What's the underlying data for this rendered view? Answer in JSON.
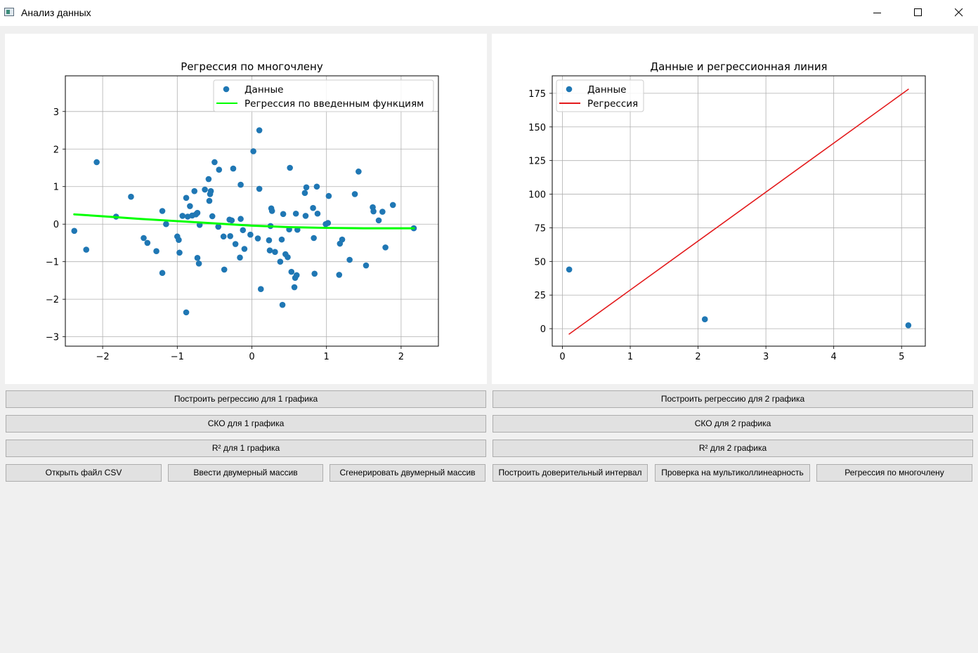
{
  "window": {
    "title": "Анализ данных",
    "icon": "app-window-icon",
    "controls": [
      "minimize-icon",
      "maximize-icon",
      "close-icon"
    ]
  },
  "chart_data": [
    {
      "type": "scatter",
      "title": "Регрессия по многочлену",
      "xlabel": "",
      "ylabel": "",
      "xlim": [
        -2.5,
        2.5
      ],
      "ylim": [
        -3.25,
        3.95
      ],
      "xticks": [
        -2,
        -1,
        0,
        1,
        2
      ],
      "xtick_labels": [
        "−2",
        "−1",
        "0",
        "1",
        "2"
      ],
      "yticks": [
        -3,
        -2,
        -1,
        0,
        1,
        2,
        3
      ],
      "ytick_labels": [
        "−3",
        "−2",
        "−1",
        "0",
        "1",
        "2",
        "3"
      ],
      "grid": true,
      "legend_position": "top-right",
      "legend": [
        "Данные",
        "Регрессия по введенным функциям"
      ],
      "series": [
        {
          "name": "Данные",
          "kind": "points",
          "color": "#1f77b4",
          "x": [
            -2.38,
            -2.22,
            -2.08,
            -1.82,
            -1.62,
            -1.45,
            -1.4,
            -1.28,
            -1.2,
            -1.2,
            -1.15,
            -1.0,
            -0.98,
            -0.97,
            -0.93,
            -0.88,
            -0.88,
            -0.86,
            -0.83,
            -0.8,
            -0.77,
            -0.75,
            -0.73,
            -0.73,
            -0.71,
            -0.7,
            -0.63,
            -0.58,
            -0.57,
            -0.56,
            -0.55,
            -0.53,
            -0.5,
            -0.45,
            -0.44,
            -0.38,
            -0.37,
            -0.3,
            -0.29,
            -0.27,
            -0.25,
            -0.22,
            -0.16,
            -0.15,
            -0.15,
            -0.12,
            -0.1,
            -0.02,
            0.02,
            0.08,
            0.1,
            0.1,
            0.12,
            0.23,
            0.24,
            0.25,
            0.26,
            0.27,
            0.31,
            0.38,
            0.4,
            0.41,
            0.42,
            0.45,
            0.48,
            0.5,
            0.51,
            0.53,
            0.57,
            0.58,
            0.59,
            0.6,
            0.61,
            0.71,
            0.72,
            0.73,
            0.82,
            0.83,
            0.84,
            0.87,
            0.88,
            0.99,
            1.02,
            1.03,
            1.17,
            1.18,
            1.21,
            1.31,
            1.38,
            1.43,
            1.53,
            1.62,
            1.63,
            1.7,
            1.75,
            1.79,
            1.89,
            2.17
          ],
          "y": [
            -0.18,
            -0.68,
            1.65,
            0.2,
            0.73,
            -0.37,
            -0.5,
            -0.72,
            0.35,
            -1.3,
            0.0,
            -0.33,
            -0.42,
            -0.76,
            0.22,
            0.7,
            -2.35,
            0.2,
            0.48,
            0.23,
            0.88,
            0.26,
            0.3,
            -0.9,
            -1.05,
            -0.02,
            0.92,
            1.2,
            0.62,
            0.8,
            0.88,
            0.21,
            1.65,
            -0.07,
            1.45,
            -0.33,
            -1.21,
            0.12,
            -0.32,
            0.1,
            1.48,
            -0.53,
            -0.89,
            1.05,
            0.14,
            -0.16,
            -0.66,
            -0.28,
            1.94,
            -0.38,
            2.5,
            0.94,
            -1.73,
            -0.43,
            -0.7,
            -0.05,
            0.42,
            0.35,
            -0.74,
            -1.0,
            -0.41,
            -2.15,
            0.27,
            -0.8,
            -0.88,
            -0.14,
            1.5,
            -1.27,
            -1.68,
            -1.43,
            0.28,
            -1.36,
            -0.15,
            0.83,
            0.22,
            0.98,
            0.43,
            -0.37,
            -1.32,
            1.0,
            0.28,
            0.0,
            0.03,
            0.75,
            -1.35,
            -0.52,
            -0.41,
            -0.95,
            0.8,
            1.4,
            -1.1,
            0.45,
            0.34,
            0.1,
            0.33,
            -0.62,
            0.51,
            -0.11
          ]
        },
        {
          "name": "Регрессия по введенным функциям",
          "kind": "line",
          "color": "#00ff00",
          "x": [
            -2.38,
            -2.0,
            -1.5,
            -1.0,
            -0.5,
            0.0,
            0.5,
            1.0,
            1.5,
            2.17
          ],
          "y": [
            0.26,
            0.21,
            0.14,
            0.08,
            0.02,
            -0.04,
            -0.08,
            -0.1,
            -0.11,
            -0.11
          ]
        }
      ]
    },
    {
      "type": "scatter",
      "title": "Данные и регрессионная линия",
      "xlabel": "",
      "ylabel": "",
      "xlim": [
        -0.15,
        5.35
      ],
      "ylim": [
        -13,
        188
      ],
      "xticks": [
        0,
        1,
        2,
        3,
        4,
        5
      ],
      "xtick_labels": [
        "0",
        "1",
        "2",
        "3",
        "4",
        "5"
      ],
      "yticks": [
        0,
        25,
        50,
        75,
        100,
        125,
        150,
        175
      ],
      "ytick_labels": [
        "0",
        "25",
        "50",
        "75",
        "100",
        "125",
        "150",
        "175"
      ],
      "grid": true,
      "legend_position": "top-left",
      "legend": [
        "Данные",
        "Регрессия"
      ],
      "series": [
        {
          "name": "Данные",
          "kind": "points",
          "color": "#1f77b4",
          "x": [
            0.1,
            2.1,
            5.1
          ],
          "y": [
            44,
            7,
            2.5
          ]
        },
        {
          "name": "Регрессия",
          "kind": "line",
          "color": "#e31a1c",
          "x": [
            0.1,
            5.1
          ],
          "y": [
            -4,
            178
          ]
        }
      ]
    }
  ],
  "buttons": {
    "build_regression_1": "Построить регрессию для 1 графика",
    "build_regression_2": "Построить регрессию для 2 графика",
    "sko_1": "СКО для 1 графика",
    "sko_2": "СКО для 2 графика",
    "r2_1": "R² для 1 графика",
    "r2_2": "R² для 2 графика",
    "open_csv": "Открыть файл CSV",
    "enter_array": "Ввести двумерный массив",
    "generate_array": "Сгенерировать двумерный массив",
    "confidence_interval": "Построить доверительный интервал",
    "multicollinearity": "Проверка на мультиколлинеарность",
    "poly_regression": "Регрессия по многочлену"
  }
}
